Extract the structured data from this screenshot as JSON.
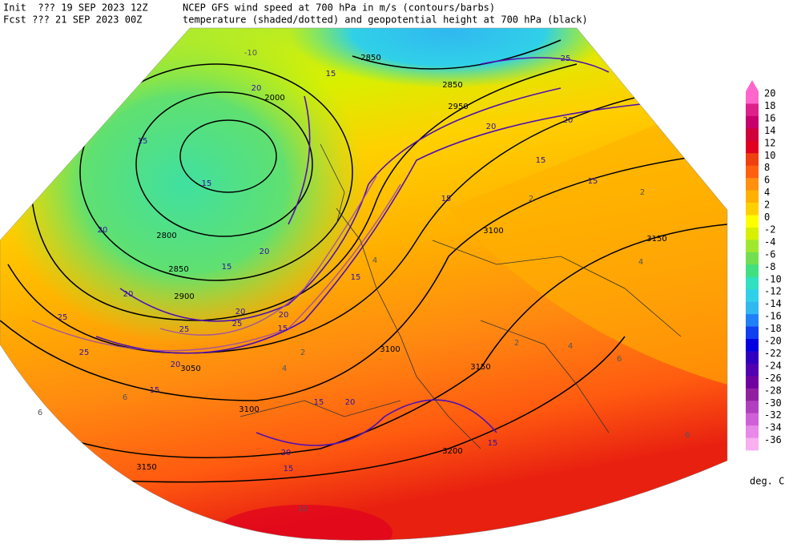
{
  "header": {
    "init": "Init  ??? 19 SEP 2023 12Z",
    "fcst": "Fcst ??? 21 SEP 2023 00Z",
    "line1": "NCEP GFS wind speed at 700 hPa in m/s (contours/barbs)",
    "line2": "temperature (shaded/dotted) and geopotential height at 700 hPa (black)"
  },
  "colorbar": {
    "levels": [
      20,
      18,
      16,
      14,
      12,
      10,
      8,
      6,
      4,
      2,
      0,
      -2,
      -4,
      -6,
      -8,
      -10,
      -12,
      -14,
      -16,
      -18,
      -20,
      -22,
      -24,
      -26,
      -28,
      -30,
      -32,
      -34,
      -36
    ],
    "colors": [
      "#ff66cc",
      "#e0208a",
      "#c8006e",
      "#d0003a",
      "#e00020",
      "#f04010",
      "#ff6010",
      "#ff9010",
      "#ffb000",
      "#ffd000",
      "#ffff00",
      "#d8f000",
      "#a0e830",
      "#70e050",
      "#40e080",
      "#30e0c0",
      "#30d0e8",
      "#30b8f0",
      "#2080f8",
      "#1040f0",
      "#0000e0",
      "#3000c0",
      "#5000b0",
      "#7000a0",
      "#9020a0",
      "#b040c0",
      "#d060d8",
      "#e888e8",
      "#f8b0f0"
    ],
    "unit": "deg. C"
  },
  "map": {
    "height_labels": [
      2000,
      2800,
      2850,
      2850,
      2850,
      2900,
      2950,
      3050,
      3100,
      3100,
      3100,
      3150,
      3150,
      3150,
      3200
    ],
    "wind_labels": [
      15,
      15,
      15,
      15,
      15,
      15,
      15,
      15,
      15,
      15,
      15,
      15,
      15,
      20,
      20,
      20,
      20,
      20,
      20,
      20,
      20,
      20,
      20,
      20,
      25,
      25,
      25,
      25,
      25
    ],
    "temp_labels": [
      -10,
      10,
      2,
      2,
      2,
      2,
      4,
      4,
      4,
      4,
      6,
      6,
      6,
      6
    ]
  }
}
